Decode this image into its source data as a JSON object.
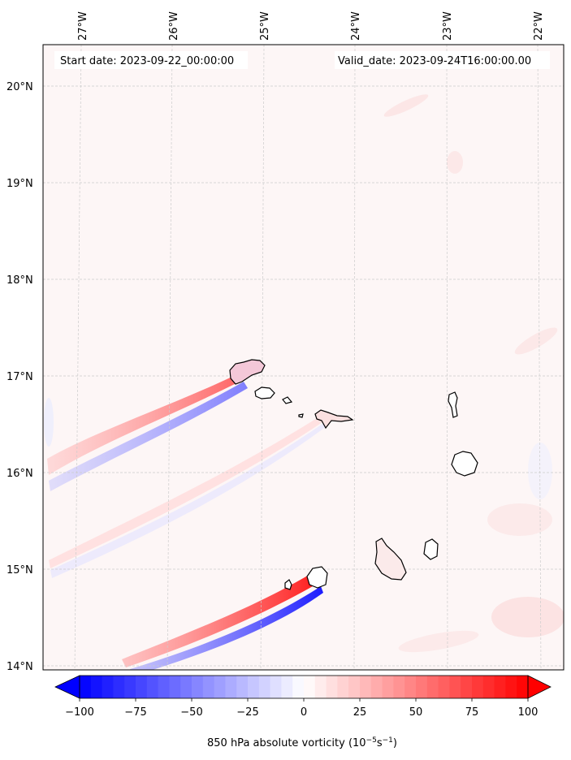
{
  "map": {
    "start_date_label": "Start date: 2023-09-22_00:00:00",
    "valid_date_label": "Valid_date: 2023-09-24T16:00:00.00",
    "lon_ticks": [
      "27°W",
      "26°W",
      "25°W",
      "24°W",
      "23°W",
      "22°W"
    ],
    "lat_ticks": [
      "20°N",
      "19°N",
      "18°N",
      "17°N",
      "16°N",
      "15°N",
      "14°N"
    ],
    "colors": {
      "background_field": "#fdf6f6",
      "gridline": "#cccccc",
      "coastline": "#000000",
      "island_fill": "#ffffff",
      "neg_max": "#0000ff",
      "pos_max": "#ff0000"
    }
  },
  "colorbar": {
    "tick_labels": [
      "−100",
      "−75",
      "−50",
      "−25",
      "0",
      "25",
      "50",
      "75",
      "100"
    ],
    "range": [
      -100,
      100
    ],
    "extend": "both",
    "label": "850 hPa absolute vorticity (10",
    "label_exp1": "−5",
    "label_mid": "s",
    "label_exp2": "−1",
    "label_end": ")"
  }
}
